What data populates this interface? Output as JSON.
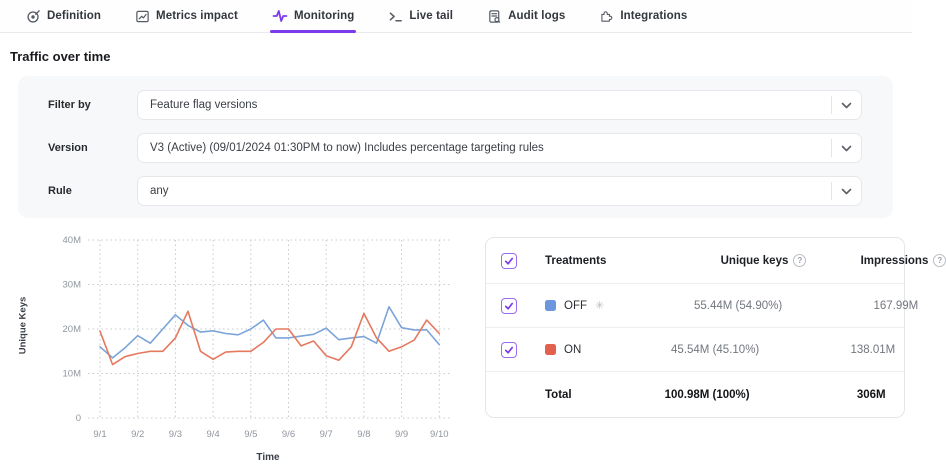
{
  "colors": {
    "accent": "#7c3aed",
    "checkbox_border": "#9b6cf0",
    "grid": "#c6c9ce",
    "tick_text": "#8f959e",
    "off_line": "#7ba4d9",
    "on_line": "#e5795f",
    "off_swatch": "#6c97dd",
    "on_swatch": "#e2604e"
  },
  "tabs": {
    "items": [
      {
        "label": "Definition",
        "icon": "target-pencil-icon",
        "active": false
      },
      {
        "label": "Metrics impact",
        "icon": "metrics-chart-icon",
        "active": false
      },
      {
        "label": "Monitoring",
        "icon": "pulse-icon",
        "active": true
      },
      {
        "label": "Live tail",
        "icon": "terminal-icon",
        "active": false
      },
      {
        "label": "Audit logs",
        "icon": "audit-document-icon",
        "active": false
      },
      {
        "label": "Integrations",
        "icon": "puzzle-icon",
        "active": false
      }
    ]
  },
  "section": {
    "title": "Traffic over time"
  },
  "filters": {
    "rows": [
      {
        "label": "Filter by",
        "value": "Feature flag versions"
      },
      {
        "label": "Version",
        "value": "V3 (Active) (09/01/2024 01:30PM to now) Includes percentage targeting rules"
      },
      {
        "label": "Rule",
        "value": "any"
      }
    ]
  },
  "chart_data": {
    "type": "line",
    "xlabel": "Time",
    "ylabel": "Unique Keys",
    "x_ticks": [
      "9/1",
      "9/2",
      "9/3",
      "9/4",
      "9/5",
      "9/6",
      "9/7",
      "9/8",
      "9/9",
      "9/10"
    ],
    "y_ticks": [
      "0",
      "10M",
      "20M",
      "30M",
      "40M"
    ],
    "ylim": [
      0,
      40
    ],
    "unit": "M",
    "grid": "dotted",
    "legend_position": "table-right",
    "series": [
      {
        "name": "OFF",
        "color": "#7ba4d9",
        "values": [
          16.0,
          13.5,
          15.8,
          18.5,
          16.8,
          20.0,
          23.2,
          20.8,
          19.3,
          19.6,
          19.0,
          18.7,
          20.0,
          22.0,
          18.0,
          18.0,
          18.4,
          18.8,
          20.2,
          17.6,
          18.0,
          18.3,
          16.8,
          25.0,
          20.3,
          19.8,
          19.8,
          16.5
        ]
      },
      {
        "name": "ON",
        "color": "#e5795f",
        "values": [
          19.5,
          12.0,
          13.8,
          14.5,
          15.0,
          15.0,
          18.0,
          24.0,
          15.0,
          13.2,
          14.8,
          15.0,
          15.0,
          17.0,
          20.0,
          20.0,
          16.2,
          17.3,
          14.0,
          13.0,
          16.0,
          23.5,
          18.0,
          15.0,
          16.0,
          17.5,
          22.0,
          19.0
        ]
      }
    ]
  },
  "treatments_table": {
    "header": {
      "name": "Treatments",
      "unique_keys": "Unique keys",
      "impressions": "Impressions",
      "help_glyph": "?"
    },
    "rows": [
      {
        "name": "OFF",
        "badge": "✳",
        "checked": true,
        "swatch": "#6c97dd",
        "unique_keys": "55.44M (54.90%)",
        "impressions": "167.99M"
      },
      {
        "name": "ON",
        "badge": "",
        "checked": true,
        "swatch": "#e2604e",
        "unique_keys": "45.54M (45.10%)",
        "impressions": "138.01M"
      }
    ],
    "total": {
      "label": "Total",
      "unique_keys": "100.98M (100%)",
      "impressions": "306M"
    }
  }
}
